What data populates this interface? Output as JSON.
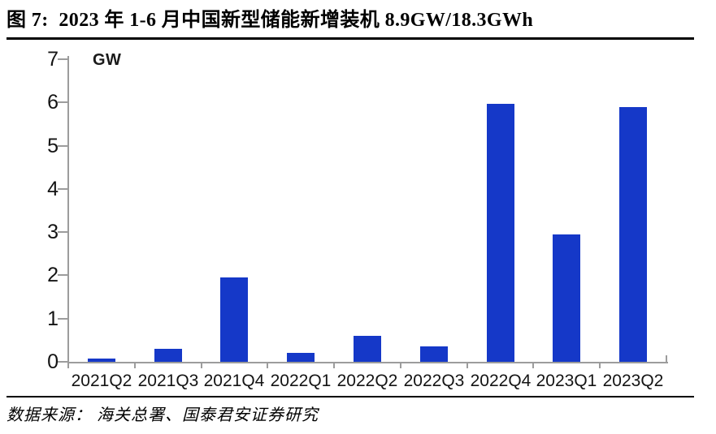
{
  "header": {
    "title": "图 7:  2023 年 1-6 月中国新型储能新增装机 8.9GW/18.3GWh"
  },
  "chart_data": {
    "type": "bar",
    "title": "2023 年 1-6 月中国新型储能新增装机 8.9GW/18.3GWh",
    "figure_label": "图 7",
    "categories": [
      "2021Q2",
      "2021Q3",
      "2021Q4",
      "2022Q1",
      "2022Q2",
      "2022Q3",
      "2022Q4",
      "2023Q1",
      "2023Q2"
    ],
    "values": [
      0.08,
      0.3,
      1.95,
      0.2,
      0.6,
      0.35,
      5.97,
      2.95,
      5.9
    ],
    "xlabel": "",
    "ylabel": "GW",
    "ylim": [
      0,
      7
    ],
    "ytick_step": 1,
    "yticks": [
      0,
      1,
      2,
      3,
      4,
      5,
      6,
      7
    ],
    "grid": false,
    "legend": "none",
    "bar_color": "#1538C8"
  },
  "footer": {
    "source": "数据来源： 海关总署、国泰君安证券研究"
  },
  "colors": {
    "bar": "#1538C8",
    "axis": "#9c9c9c",
    "tick_text": "#141414",
    "rule": "#000000"
  }
}
